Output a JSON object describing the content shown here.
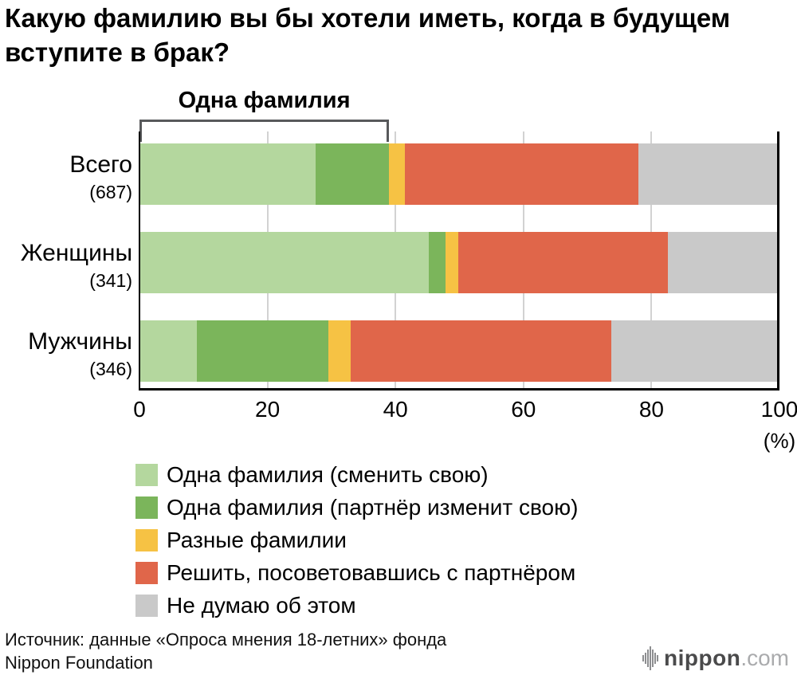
{
  "title": "Какую фамилию вы бы хотели иметь, когда в будущем вступите в брак?",
  "bracket": {
    "label": "Одна фамилия",
    "span_pct": 39
  },
  "chart_data": {
    "type": "bar",
    "orientation": "horizontal",
    "stacked": true,
    "categories": [
      "Всего",
      "Женщины",
      "Мужчины"
    ],
    "category_counts": [
      "(687)",
      "(341)",
      "(346)"
    ],
    "series": [
      {
        "name": "Одна фамилия (сменить свою)",
        "color": "#b4d79e",
        "values": [
          27.5,
          45.2,
          9.0
        ]
      },
      {
        "name": "Одна фамилия (партнёр изменит свою)",
        "color": "#7bb55b",
        "values": [
          11.5,
          2.6,
          20.5
        ]
      },
      {
        "name": "Разные фамилии",
        "color": "#f6c244",
        "values": [
          2.5,
          2.0,
          3.5
        ]
      },
      {
        "name": "Решить, посоветовавшись с партнёром",
        "color": "#e0664a",
        "values": [
          36.5,
          32.8,
          40.7
        ]
      },
      {
        "name": "Не думаю об этом",
        "color": "#c9c9c9",
        "values": [
          22.0,
          17.4,
          26.3
        ]
      }
    ],
    "xlim": [
      0,
      100
    ],
    "ticks": [
      0,
      20,
      40,
      60,
      80,
      100
    ],
    "unit_label": "(%)",
    "grid": "vertical-light-gray",
    "legend_position": "below"
  },
  "source": {
    "line1": "Источник: данные «Опроса мнения 18-летних» фонда",
    "line2": "Nippon Foundation"
  },
  "logo": {
    "brand": "nippon",
    "tld": ".com"
  }
}
